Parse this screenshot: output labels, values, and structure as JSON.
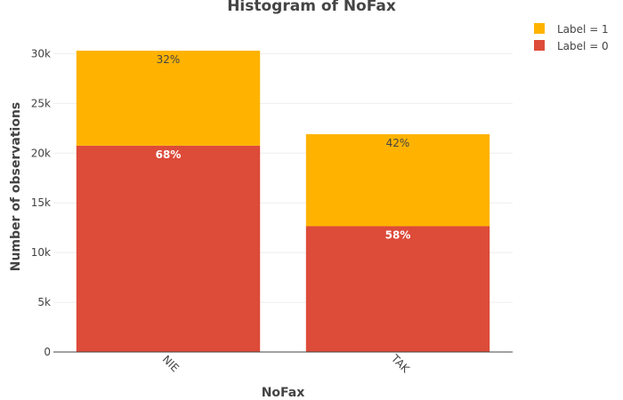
{
  "chart_data": {
    "type": "bar",
    "stacked": true,
    "title": "Histogram of NoFax",
    "xlabel": "NoFax",
    "ylabel": "Number of observations",
    "categories": [
      "NIE",
      "TAK"
    ],
    "ylim": [
      0,
      32000
    ],
    "yticks": [
      0,
      5000,
      10000,
      15000,
      20000,
      25000,
      30000
    ],
    "ytick_labels": [
      "0",
      "5k",
      "10k",
      "15k",
      "20k",
      "25k",
      "30k"
    ],
    "grid": true,
    "legend_position": "top-right",
    "series": [
      {
        "name": "Label = 0",
        "values": [
          20750,
          12650
        ],
        "labels": [
          "68%",
          "58%"
        ],
        "color": "#dd4b39",
        "label_color": "#ffffff"
      },
      {
        "name": "Label = 1",
        "values": [
          9550,
          9250
        ],
        "labels": [
          "32%",
          "42%"
        ],
        "color": "#ffb300",
        "label_color": "#444444"
      }
    ],
    "legend": [
      {
        "name": "Label = 1",
        "color": "#ffb300"
      },
      {
        "name": "Label = 0",
        "color": "#dd4b39"
      }
    ]
  }
}
